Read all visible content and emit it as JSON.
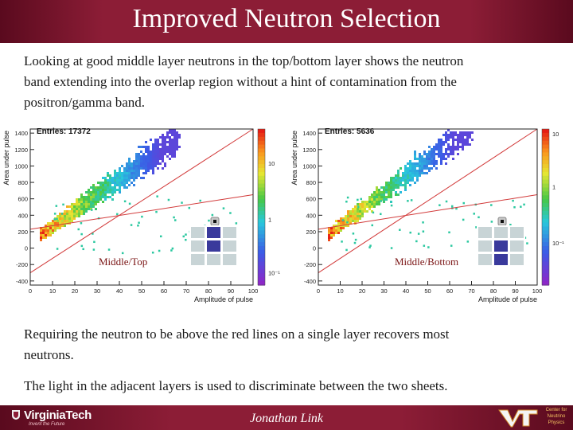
{
  "slide": {
    "title": "Improved Neutron Selection",
    "paragraph1_line1": "Looking at good middle layer neutrons in the top/bottom layer shows the neutron",
    "paragraph1_line2": "band extending into the overlap region without a hint of contamination from the",
    "paragraph1_line3": "positron/gamma band.",
    "paragraph2_line1": "Requiring the neutron to be above the red lines on a single layer recovers most",
    "paragraph2_line2": "neutrons.",
    "paragraph3": "The light in the adjacent layers is used to discriminate between the two sheets.",
    "author": "Jonathan Link",
    "university": "VirginiaTech",
    "tagline": "Invent the Future",
    "center_line1": "Center for",
    "center_line2": "Neutrino",
    "center_line3": "Physics",
    "accent_color": "#8c1d36"
  },
  "plots": [
    {
      "entries_label": "Entries: 17372",
      "caption": "Middle/Top",
      "xlabel": "Amplitude of pulse",
      "ylabel": "Area under pulse",
      "x_ticks": [
        "0",
        "10",
        "20",
        "30",
        "40",
        "50",
        "60",
        "70",
        "80",
        "90",
        "100"
      ],
      "y_ticks": [
        "1400",
        "1200",
        "1000",
        "800",
        "600",
        "400",
        "200",
        "0",
        "-200",
        "-400"
      ],
      "z_ticks": [
        "10",
        "1",
        "10⁻¹"
      ]
    },
    {
      "entries_label": "Entries: 5636",
      "caption": "Middle/Bottom",
      "xlabel": "Amplitude of pulse",
      "ylabel": "Area under pulse",
      "x_ticks": [
        "0",
        "10",
        "20",
        "30",
        "40",
        "50",
        "60",
        "70",
        "80",
        "90",
        "100"
      ],
      "y_ticks": [
        "1400",
        "1200",
        "1000",
        "800",
        "600",
        "400",
        "200",
        "0",
        "-200",
        "-400"
      ],
      "z_ticks": [
        "10",
        "1",
        "10⁻¹"
      ]
    }
  ]
}
